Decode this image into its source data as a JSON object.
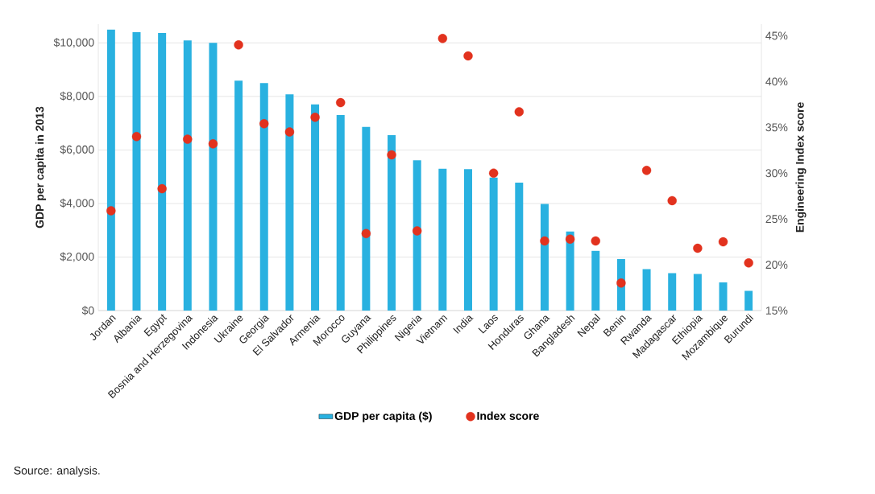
{
  "chart_data": {
    "type": "bar",
    "categories": [
      "Jordan",
      "Albania",
      "Egypt",
      "Bosnia and Herzegovina",
      "Indonesia",
      "Ukraine",
      "Georgia",
      "El Salvador",
      "Armenia",
      "Morocco",
      "Guyana",
      "Philippines",
      "Nigeria",
      "Vietnam",
      "India",
      "Laos",
      "Honduras",
      "Ghana",
      "Bangladesh",
      "Nepal",
      "Benin",
      "Rwanda",
      "Madagascar",
      "Ethiopia",
      "Mozambique",
      "Burundi"
    ],
    "series": [
      {
        "name": "GDP per capita ($)",
        "type": "bar",
        "color": "#29b1e0",
        "values": [
          10500,
          10400,
          10370,
          10090,
          10000,
          8590,
          8500,
          8080,
          7700,
          7300,
          6860,
          6550,
          5610,
          5300,
          5280,
          4970,
          4780,
          3980,
          2950,
          2230,
          1920,
          1550,
          1400,
          1370,
          1050,
          740
        ]
      },
      {
        "name": "Index score",
        "type": "scatter",
        "axis": "y2",
        "marker": "circle",
        "color": "#e2321e",
        "values": [
          25.9,
          34.0,
          28.3,
          33.7,
          33.2,
          44.0,
          35.4,
          34.5,
          36.1,
          37.7,
          23.4,
          32.0,
          23.7,
          44.7,
          42.8,
          30.0,
          36.7,
          22.6,
          22.8,
          22.6,
          18.0,
          30.3,
          27.0,
          21.8,
          22.5,
          20.2
        ]
      }
    ],
    "ylabel": "GDP per capita in 2013",
    "y2label": "Engineering Index score",
    "ylim": [
      0,
      10700
    ],
    "y2lim": [
      15,
      46.27
    ],
    "yticks": [
      {
        "value": 0,
        "label": "$0"
      },
      {
        "value": 2000,
        "label": "$2,000"
      },
      {
        "value": 4000,
        "label": "$4,000"
      },
      {
        "value": 6000,
        "label": "$6,000"
      },
      {
        "value": 8000,
        "label": "$8,000"
      },
      {
        "value": 10000,
        "label": "$10,000"
      }
    ],
    "y2ticks": [
      {
        "value": 15,
        "label": "15%"
      },
      {
        "value": 20,
        "label": "20%"
      },
      {
        "value": 25,
        "label": "25%"
      },
      {
        "value": 30,
        "label": "30%"
      },
      {
        "value": 35,
        "label": "35%"
      },
      {
        "value": 40,
        "label": "40%"
      },
      {
        "value": 45,
        "label": "45%"
      }
    ],
    "grid": "y",
    "legend": "bottom",
    "annotations": [
      "Source: analysis."
    ]
  }
}
